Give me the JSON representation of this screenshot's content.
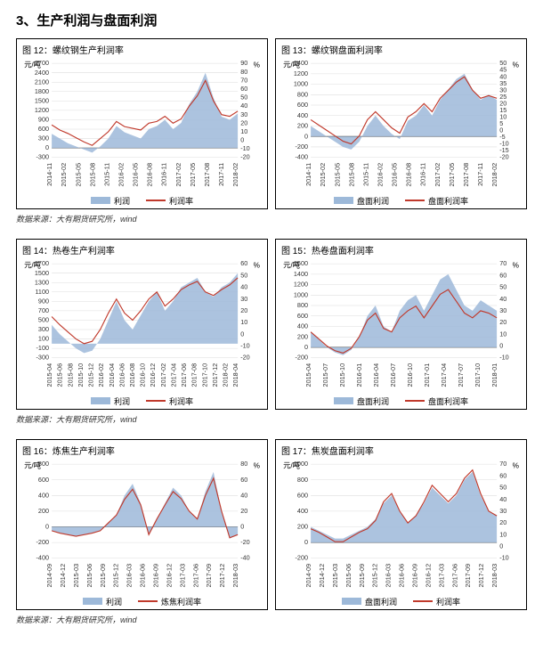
{
  "section_title": "3、生产利润与盘面利润",
  "source_text": "数据来源：大有期货研究所，wind",
  "colors": {
    "area": "#9db9d9",
    "line": "#c0392b",
    "grid": "#dddddd",
    "text": "#000000"
  },
  "rows": [
    {
      "charts": [
        {
          "title": "图 12：螺纹钢生产利润率",
          "left_unit": "元/吨",
          "right_unit": "%",
          "left_min": -300,
          "left_max": 2700,
          "left_step": 300,
          "right_min": -20,
          "right_max": 90,
          "right_step": 10,
          "x_labels": [
            "2014-11",
            "2015-02",
            "2015-05",
            "2015-08",
            "2015-11",
            "2016-02",
            "2016-05",
            "2016-08",
            "2016-11",
            "2017-02",
            "2017-05",
            "2017-08",
            "2017-11",
            "2018-02"
          ],
          "area_legend": "利润",
          "line_legend": "利润率",
          "area_values": [
            450,
            300,
            150,
            50,
            -50,
            -150,
            50,
            300,
            700,
            500,
            400,
            300,
            600,
            700,
            900,
            600,
            800,
            1400,
            1800,
            2400,
            1600,
            1000,
            900,
            1100
          ],
          "line_values": [
            18,
            12,
            8,
            3,
            -2,
            -6,
            2,
            10,
            22,
            16,
            14,
            12,
            20,
            22,
            28,
            20,
            25,
            40,
            52,
            70,
            46,
            30,
            28,
            34
          ]
        },
        {
          "title": "图 13：螺纹钢盘面利润率",
          "left_unit": "元/吨",
          "right_unit": "%",
          "left_min": -400,
          "left_max": 1400,
          "left_step": 200,
          "right_min": -20,
          "right_max": 50,
          "right_step": 5,
          "x_labels": [
            "2014-11",
            "2015-02",
            "2015-05",
            "2015-08",
            "2015-11",
            "2016-02",
            "2016-05",
            "2016-08",
            "2016-11",
            "2017-02",
            "2017-05",
            "2017-08",
            "2017-11",
            "2018-02"
          ],
          "area_legend": "盘面利润",
          "line_legend": "盘面利润率",
          "area_values": [
            200,
            100,
            0,
            -100,
            -200,
            -250,
            -100,
            200,
            400,
            200,
            50,
            -50,
            300,
            400,
            600,
            400,
            700,
            900,
            1100,
            1200,
            900,
            700,
            800,
            700
          ],
          "line_values": [
            8,
            4,
            0,
            -4,
            -8,
            -10,
            -4,
            8,
            14,
            8,
            2,
            -2,
            10,
            14,
            20,
            14,
            24,
            30,
            36,
            40,
            30,
            24,
            26,
            24
          ]
        }
      ]
    },
    {
      "charts": [
        {
          "title": "图 14：热卷生产利润率",
          "left_unit": "元/吨",
          "right_unit": "%",
          "left_min": -300,
          "left_max": 1700,
          "left_step": 200,
          "right_min": -20,
          "right_max": 60,
          "right_step": 10,
          "x_labels": [
            "2015-04",
            "2015-06",
            "2015-08",
            "2015-10",
            "2015-12",
            "2016-02",
            "2016-04",
            "2016-06",
            "2016-08",
            "2016-10",
            "2016-12",
            "2017-02",
            "2017-04",
            "2017-06",
            "2017-08",
            "2017-10",
            "2017-12",
            "2018-02",
            "2018-04"
          ],
          "area_legend": "利润",
          "line_legend": "利润率",
          "area_values": [
            400,
            200,
            50,
            -100,
            -200,
            -150,
            100,
            500,
            900,
            500,
            300,
            600,
            900,
            1100,
            700,
            900,
            1200,
            1300,
            1400,
            1100,
            1000,
            1200,
            1300,
            1500
          ],
          "line_values": [
            15,
            8,
            2,
            -4,
            -8,
            -6,
            4,
            18,
            30,
            18,
            12,
            20,
            30,
            36,
            24,
            30,
            38,
            42,
            45,
            36,
            33,
            38,
            42,
            48
          ]
        },
        {
          "title": "图 15：热卷盘面利润率",
          "left_unit": "元/吨",
          "right_unit": "%",
          "left_min": -200,
          "left_max": 1600,
          "left_step": 200,
          "right_min": -10,
          "right_max": 70,
          "right_step": 10,
          "x_labels": [
            "2015-04",
            "2015-07",
            "2015-10",
            "2016-01",
            "2016-04",
            "2016-07",
            "2016-10",
            "2017-01",
            "2017-04",
            "2017-07",
            "2017-10",
            "2018-01"
          ],
          "area_legend": "盘面利润",
          "line_legend": "盘面利润率",
          "area_values": [
            300,
            150,
            0,
            -100,
            -150,
            -50,
            200,
            600,
            800,
            400,
            300,
            700,
            900,
            1000,
            700,
            1000,
            1300,
            1400,
            1100,
            800,
            700,
            900,
            800,
            700
          ],
          "line_values": [
            12,
            6,
            0,
            -4,
            -6,
            -2,
            8,
            22,
            28,
            15,
            12,
            24,
            30,
            34,
            24,
            34,
            44,
            48,
            38,
            28,
            24,
            30,
            28,
            24
          ]
        }
      ]
    },
    {
      "charts": [
        {
          "title": "图 16：炼焦生产利润率",
          "left_unit": "元/吨",
          "right_unit": "%",
          "left_min": -400,
          "left_max": 800,
          "left_step": 200,
          "right_min": -40,
          "right_max": 80,
          "right_step": 20,
          "x_labels": [
            "2014-09",
            "2014-12",
            "2015-03",
            "2015-06",
            "2015-09",
            "2015-12",
            "2016-03",
            "2016-06",
            "2016-09",
            "2016-12",
            "2017-03",
            "2017-06",
            "2017-09",
            "2017-12",
            "2018-03"
          ],
          "area_legend": "利润",
          "line_legend": "炼焦利润率",
          "area_values": [
            -50,
            -80,
            -100,
            -120,
            -100,
            -80,
            -50,
            50,
            150,
            400,
            550,
            300,
            -100,
            100,
            300,
            500,
            400,
            200,
            100,
            450,
            700,
            200,
            -150,
            -100
          ],
          "line_values": [
            -5,
            -8,
            -10,
            -12,
            -10,
            -8,
            -5,
            5,
            15,
            35,
            48,
            28,
            -10,
            10,
            28,
            45,
            36,
            20,
            10,
            40,
            62,
            20,
            -14,
            -10
          ]
        },
        {
          "title": "图 17：焦炭盘面利润率",
          "left_unit": "元/吨",
          "right_unit": "%",
          "left_min": -200,
          "left_max": 1000,
          "left_step": 200,
          "right_min": -10,
          "right_max": 70,
          "right_step": 10,
          "x_labels": [
            "2014-09",
            "2014-12",
            "2015-03",
            "2015-06",
            "2015-09",
            "2015-12",
            "2016-03",
            "2016-06",
            "2016-09",
            "2016-12",
            "2017-03",
            "2017-06",
            "2017-09",
            "2017-12",
            "2018-03"
          ],
          "area_legend": "盘面利润",
          "line_legend": "利润率",
          "area_values": [
            200,
            150,
            100,
            50,
            50,
            100,
            150,
            200,
            300,
            500,
            600,
            400,
            250,
            350,
            500,
            700,
            600,
            500,
            600,
            800,
            900,
            600,
            400,
            350
          ],
          "line_values": [
            15,
            12,
            8,
            4,
            4,
            8,
            12,
            15,
            22,
            38,
            45,
            30,
            20,
            26,
            38,
            52,
            45,
            38,
            45,
            58,
            65,
            45,
            30,
            26
          ]
        }
      ]
    }
  ]
}
